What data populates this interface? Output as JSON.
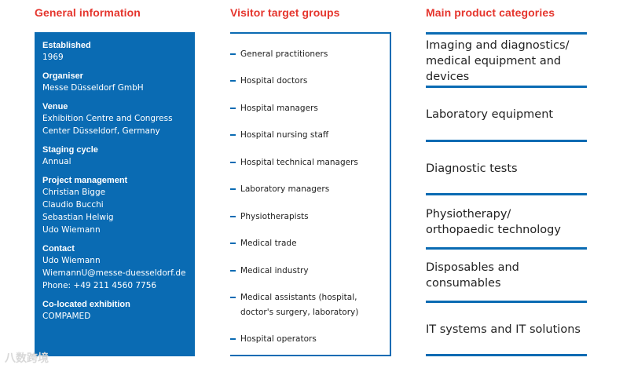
{
  "headings": {
    "general": "General information",
    "visitor": "Visitor target groups",
    "products": "Main product categories"
  },
  "general": {
    "established_label": "Established",
    "established_value": "1969",
    "organiser_label": "Organiser",
    "organiser_value": "Messe Düsseldorf GmbH",
    "venue_label": "Venue",
    "venue_lines": [
      "Exhibition Centre and Congress",
      "Center Düsseldorf, Germany"
    ],
    "staging_label": "Staging cycle",
    "staging_value": "Annual",
    "pm_label": "Project management",
    "pm_lines": [
      "Christian Bigge",
      "Claudio Bucchi",
      "Sebastian Helwig",
      "Udo Wiemann"
    ],
    "contact_label": "Contact",
    "contact_lines": [
      "Udo Wiemann",
      "WiemannU@messe-duesseldorf.de",
      "Phone: +49 211 4560 7756"
    ],
    "colocated_label": "Co-located exhibition",
    "colocated_value": "COMPAMED"
  },
  "visitor_groups": [
    [
      "General practitioners"
    ],
    [
      "Hospital doctors"
    ],
    [
      "Hospital managers"
    ],
    [
      "Hospital nursing staff"
    ],
    [
      "Hospital technical managers"
    ],
    [
      "Laboratory managers"
    ],
    [
      "Physiotherapists"
    ],
    [
      "Medical trade"
    ],
    [
      "Medical industry"
    ],
    [
      "Medical assistants (hospital,",
      "doctor's surgery, laboratory)"
    ],
    [
      "Hospital operators"
    ]
  ],
  "product_categories": [
    [
      "Imaging and diagnostics/",
      "medical equipment and",
      "devices"
    ],
    [
      "Laboratory equipment"
    ],
    [
      "Diagnostic tests"
    ],
    [
      "Physiotherapy/",
      "orthopaedic technology"
    ],
    [
      "Disposables and",
      "consumables"
    ],
    [
      "IT systems and IT solutions"
    ]
  ],
  "watermark": "八数跨境"
}
